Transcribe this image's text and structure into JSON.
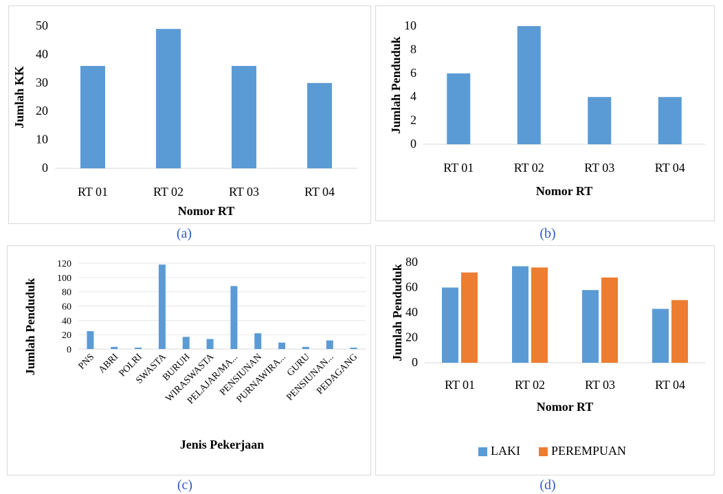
{
  "panels": {
    "a": {
      "caption": "(a)"
    },
    "b": {
      "caption": "(b)"
    },
    "c": {
      "caption": "(c)"
    },
    "d": {
      "caption": "(d)"
    }
  },
  "colors": {
    "laki": "#5b9bd5",
    "perempuan": "#ed7d31"
  },
  "chart_data": [
    {
      "id": "a",
      "type": "bar",
      "categories": [
        "RT 01",
        "RT 02",
        "RT 03",
        "RT 04"
      ],
      "values": [
        36,
        49,
        36,
        30
      ],
      "ylim": [
        0,
        50
      ],
      "yticks": [
        0,
        10,
        20,
        30,
        40,
        50
      ],
      "xlabel": "Nomor RT",
      "ylabel": "Jumlah KK",
      "grid": false
    },
    {
      "id": "b",
      "type": "bar",
      "categories": [
        "RT 01",
        "RT 02",
        "RT 03",
        "RT 04"
      ],
      "values": [
        6,
        10,
        4,
        4
      ],
      "ylim": [
        0,
        10
      ],
      "yticks": [
        0,
        2,
        4,
        6,
        8,
        10
      ],
      "xlabel": "Nomor RT",
      "ylabel": "Jumlah Penduduk",
      "grid": false
    },
    {
      "id": "c",
      "type": "bar",
      "categories": [
        "PNS",
        "ABRI",
        "POLRI",
        "SWASTA",
        "BURUH",
        "WIRASWASTA",
        "PELAJAR/MA...",
        "PENSIUNAN",
        "PURNAWIRA...",
        "GURU",
        "PENSIUNAN...",
        "PEDAGANG"
      ],
      "values": [
        25,
        3,
        2,
        118,
        17,
        14,
        88,
        22,
        9,
        3,
        12,
        2
      ],
      "ylim": [
        0,
        120
      ],
      "yticks": [
        0,
        20,
        40,
        60,
        80,
        100,
        120
      ],
      "xlabel": "Jenis Pekerjaan",
      "ylabel": "Jumlah Penduduk",
      "grid": true
    },
    {
      "id": "d",
      "type": "bar",
      "categories": [
        "RT 01",
        "RT 02",
        "RT 03",
        "RT 04"
      ],
      "series": [
        {
          "name": "LAKI",
          "values": [
            60,
            77,
            58,
            43
          ]
        },
        {
          "name": "PEREMPUAN",
          "values": [
            72,
            76,
            68,
            50
          ]
        }
      ],
      "ylim": [
        0,
        80
      ],
      "yticks": [
        0,
        20,
        40,
        60,
        80
      ],
      "xlabel": "Nomor RT",
      "ylabel": "Jumlah Penduduk",
      "legend": "bottom",
      "grid": false
    }
  ]
}
